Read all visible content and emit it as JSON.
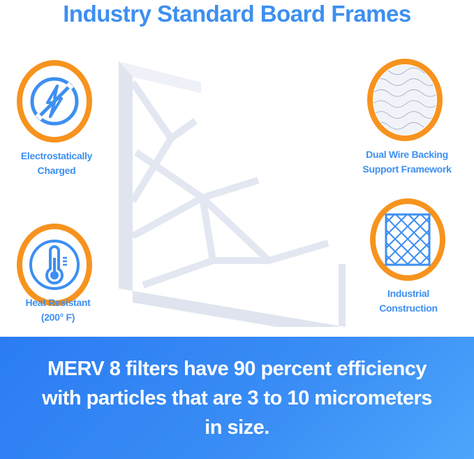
{
  "title": "Industry Standard Board Frames",
  "features": [
    {
      "label_line1": "Electrostatically",
      "label_line2": "Charged",
      "icon": "no-electricity-icon"
    },
    {
      "label_line1": "Heat Resistant",
      "label_line2": "(200° F)",
      "icon": "thermometer-icon"
    },
    {
      "label_line1": "Dual Wire Backing",
      "label_line2": "Support Framework",
      "icon": "wire-mesh-photo"
    },
    {
      "label_line1": "Industrial",
      "label_line2": "Construction",
      "icon": "grid-frame-icon"
    }
  ],
  "banner": {
    "text": "MERV 8 filters have 90 percent efficiency with particles that are 3 to 10 micrometers in size."
  },
  "colors": {
    "accent_blue": "#3d8ff0",
    "ring_orange": "#f7931e",
    "banner_start": "#2b7cf3",
    "banner_end": "#4ea6fb"
  }
}
